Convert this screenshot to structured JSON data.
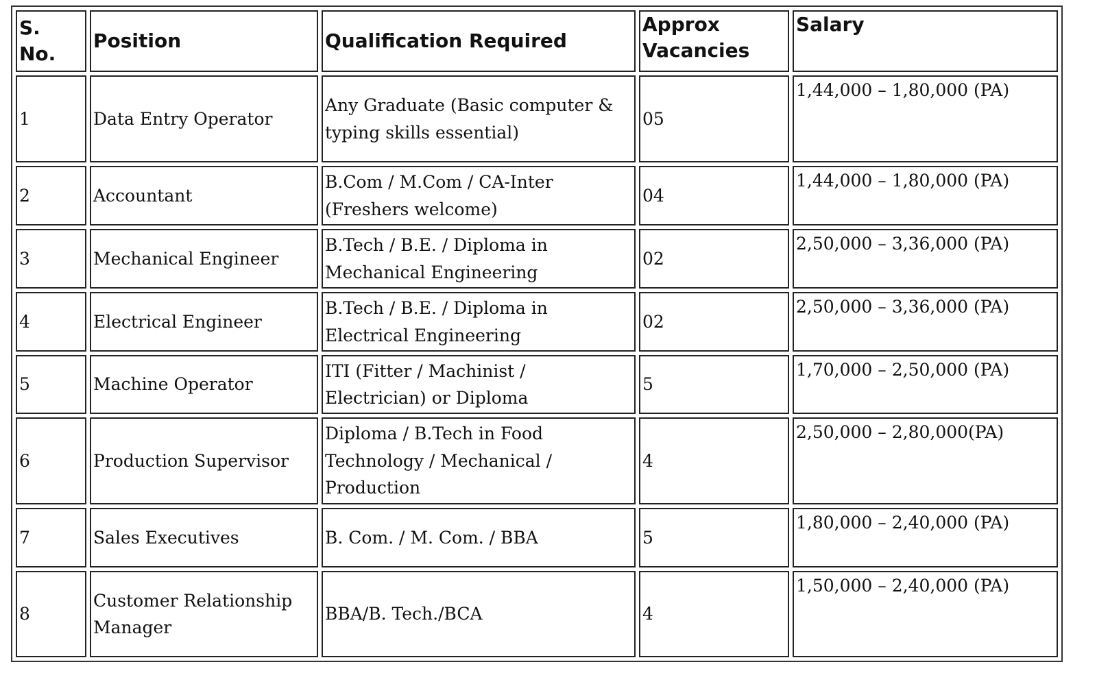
{
  "table": {
    "headers": [
      "S. No.",
      "Position",
      "Qualification Required",
      "Approx Vacancies",
      "Salary"
    ],
    "rows": [
      {
        "sno": "1",
        "position": "Data Entry Operator",
        "qualification": "Any Graduate (Basic computer & typing skills essential)",
        "vacancies": "05",
        "salary": "1,44,000 – 1,80,000 (PA)"
      },
      {
        "sno": "2",
        "position": "Accountant",
        "qualification": "B.Com / M.Com / CA-Inter (Freshers welcome)",
        "vacancies": "04",
        "salary": "1,44,000 – 1,80,000 (PA)"
      },
      {
        "sno": "3",
        "position": "Mechanical Engineer",
        "qualification": "B.Tech / B.E. / Diploma in Mechanical Engineering",
        "vacancies": "02",
        "salary": "2,50,000 – 3,36,000 (PA)"
      },
      {
        "sno": "4",
        "position": "Electrical Engineer",
        "qualification": "B.Tech / B.E. / Diploma in Electrical Engineering",
        "vacancies": "02",
        "salary": "2,50,000 – 3,36,000 (PA)"
      },
      {
        "sno": "5",
        "position": "Machine Operator",
        "qualification": "ITI (Fitter / Machinist / Electrician) or Diploma",
        "vacancies": "5",
        "salary": "1,70,000 – 2,50,000 (PA)"
      },
      {
        "sno": "6",
        "position": "Production Supervisor",
        "qualification": "Diploma / B.Tech in Food Technology / Mechanical / Production",
        "vacancies": "4",
        "salary": "2,50,000 – 2,80,000(PA)"
      },
      {
        "sno": "7",
        "position": "Sales Executives",
        "qualification": "B. Com. / M. Com. / BBA",
        "vacancies": "5",
        "salary": "1,80,000 – 2,40,000 (PA)"
      },
      {
        "sno": "8",
        "position": "Customer Relationship Manager",
        "qualification": "BBA/B. Tech./BCA",
        "vacancies": "4",
        "salary": "1,50,000 – 2,40,000 (PA)"
      }
    ]
  }
}
